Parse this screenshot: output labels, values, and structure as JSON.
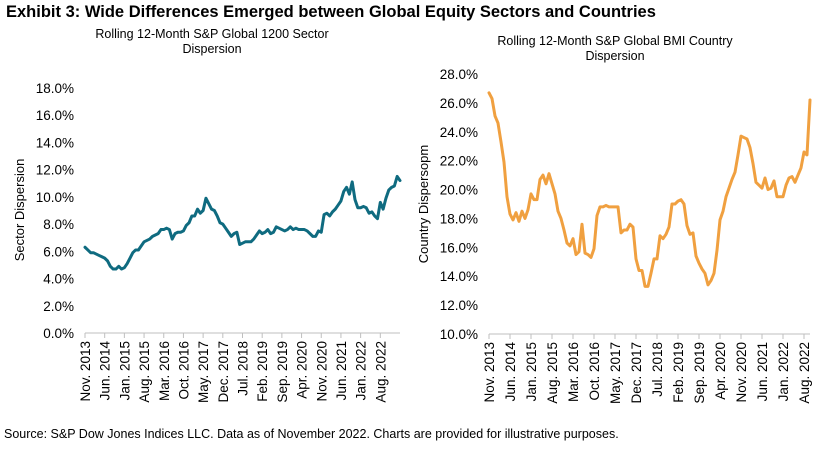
{
  "exhibit_title": "Exhibit 3: Wide Differences Emerged between Global Equity Sectors and Countries",
  "source_note": "Source: S&P Dow Jones Indices LLC. Data as of November 2022. Charts are provided for illustrative purposes.",
  "chart_data": [
    {
      "type": "line",
      "title": "Rolling 12-Month S&P Global 1200 Sector Dispersion",
      "title_lines": [
        "Rolling 12-Month S&P Global 1200 Sector",
        "Dispersion"
      ],
      "xlabel": "",
      "ylabel": "Sector Dispersion",
      "ylim": [
        0,
        18
      ],
      "yticks": [
        0,
        2,
        4,
        6,
        8,
        10,
        12,
        14,
        16,
        18
      ],
      "ytick_labels": [
        "0.0%",
        "2.0%",
        "4.0%",
        "6.0%",
        "8.0%",
        "10.0%",
        "12.0%",
        "14.0%",
        "16.0%",
        "18.0%"
      ],
      "x_start": "Nov. 2013",
      "x_end": "Nov. 2022",
      "x_tick_labels": [
        "Nov. 2013",
        "Jun. 2014",
        "Jan. 2015",
        "Aug. 2015",
        "Mar. 2016",
        "Oct. 2016",
        "May. 2017",
        "Dec. 2017",
        "Jul. 2018",
        "Feb. 2019",
        "Sep. 2019",
        "Apr. 2020",
        "Nov. 2020",
        "Jun. 2021",
        "Jan. 2022",
        "Aug. 2022"
      ],
      "grid": false,
      "legend": "none",
      "series": [
        {
          "name": "Sector Dispersion",
          "color": "#0f6b80",
          "values": [
            6.3,
            6.1,
            5.9,
            5.9,
            5.8,
            5.7,
            5.6,
            5.5,
            5.3,
            4.9,
            4.7,
            4.7,
            4.9,
            4.7,
            4.8,
            5.1,
            5.5,
            5.9,
            6.1,
            6.1,
            6.4,
            6.7,
            6.8,
            6.9,
            7.1,
            7.2,
            7.3,
            7.6,
            7.6,
            7.7,
            7.6,
            6.9,
            7.3,
            7.4,
            7.4,
            7.5,
            7.9,
            8.1,
            8.6,
            8.6,
            9.1,
            8.8,
            9.0,
            9.9,
            9.5,
            9.1,
            9.0,
            8.6,
            8.1,
            8.0,
            7.7,
            7.4,
            7.1,
            7.3,
            7.4,
            6.5,
            6.6,
            6.7,
            6.7,
            6.7,
            6.9,
            7.2,
            7.5,
            7.3,
            7.4,
            7.6,
            7.3,
            7.4,
            7.8,
            7.7,
            7.6,
            7.5,
            7.6,
            7.8,
            7.6,
            7.7,
            7.6,
            7.6,
            7.6,
            7.5,
            7.3,
            7.1,
            7.1,
            7.5,
            7.4,
            8.7,
            8.8,
            8.6,
            8.9,
            9.1,
            9.4,
            9.7,
            10.4,
            10.7,
            10.2,
            11.1,
            9.8,
            9.2,
            9.2,
            9.3,
            9.2,
            8.8,
            8.9,
            8.6,
            8.4,
            9.6,
            9.1,
            9.9,
            10.5,
            10.7,
            10.8,
            11.5,
            11.2
          ]
        }
      ]
    },
    {
      "type": "line",
      "title": "Rolling 12-Month S&P Global BMI Country Dispersion",
      "title_lines": [
        "Rolling 12-Month S&P Global BMI Country",
        "Dispersion"
      ],
      "xlabel": "",
      "ylabel": "Country Dispersopm",
      "ylim": [
        10,
        28
      ],
      "yticks": [
        10,
        12,
        14,
        16,
        18,
        20,
        22,
        24,
        26,
        28
      ],
      "ytick_labels": [
        "10.0%",
        "12.0%",
        "14.0%",
        "16.0%",
        "18.0%",
        "20.0%",
        "22.0%",
        "24.0%",
        "26.0%",
        "28.0%"
      ],
      "x_start": "Nov. 2013",
      "x_end": "Nov. 2022",
      "x_tick_labels": [
        "Nov. 2013",
        "Jun. 2014",
        "Jan. 2015",
        "Aug. 2015",
        "Mar. 2016",
        "Oct. 2016",
        "May. 2017",
        "Dec. 2017",
        "Jul. 2018",
        "Feb. 2019",
        "Sep. 2019",
        "Apr. 2020",
        "Nov. 2020",
        "Jun. 2021",
        "Jan. 2022",
        "Aug. 2022"
      ],
      "grid": false,
      "legend": "none",
      "series": [
        {
          "name": "Country Dispersion",
          "color": "#f0a040",
          "values": [
            26.7,
            26.3,
            25.1,
            24.6,
            23.3,
            21.9,
            19.5,
            18.3,
            17.9,
            18.4,
            17.8,
            18.5,
            18.0,
            18.6,
            19.7,
            19.3,
            19.3,
            20.7,
            21.0,
            20.4,
            21.1,
            20.4,
            19.7,
            18.5,
            18.0,
            17.2,
            16.3,
            16.1,
            16.6,
            15.5,
            15.7,
            17.6,
            15.6,
            15.5,
            15.3,
            15.9,
            18.2,
            18.8,
            18.8,
            18.9,
            18.8,
            18.8,
            18.8,
            18.8,
            17.0,
            17.2,
            17.2,
            17.6,
            17.4,
            15.2,
            14.4,
            14.4,
            13.3,
            13.3,
            14.2,
            15.2,
            15.2,
            16.8,
            16.6,
            16.9,
            17.4,
            19.0,
            19.0,
            19.2,
            19.3,
            19.0,
            17.5,
            16.9,
            17.0,
            15.4,
            14.9,
            14.5,
            14.2,
            13.4,
            13.7,
            14.2,
            15.8,
            17.9,
            18.5,
            19.5,
            20.1,
            20.7,
            21.2,
            22.4,
            23.7,
            23.6,
            23.5,
            22.9,
            21.8,
            20.5,
            20.3,
            20.1,
            20.8,
            20.0,
            20.1,
            20.6,
            19.5,
            19.5,
            19.5,
            20.3,
            20.8,
            20.9,
            20.5,
            21.0,
            21.5,
            22.6,
            22.4,
            26.2
          ]
        }
      ]
    }
  ]
}
